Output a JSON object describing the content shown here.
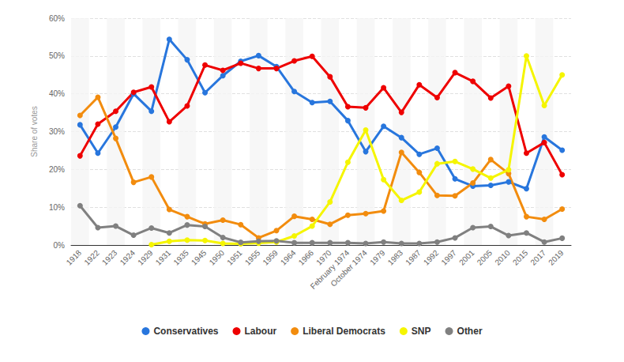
{
  "chart_data": {
    "type": "line",
    "y_label": "Share of votes",
    "categories": [
      "1918",
      "1922",
      "1923",
      "1924",
      "1929",
      "1931",
      "1935",
      "1945",
      "1950",
      "1951",
      "1955",
      "1959",
      "1964",
      "1966",
      "1970",
      "February 1974",
      "October 1974",
      "1979",
      "1983",
      "1987",
      "1992",
      "1997",
      "2001",
      "2005",
      "2010",
      "2015",
      "2017",
      "2019"
    ],
    "series": [
      {
        "name": "Conservatives",
        "color": "#2876dd",
        "values": [
          31.8,
          24.3,
          31.2,
          40.0,
          35.4,
          54.4,
          49.0,
          40.3,
          44.8,
          48.6,
          50.1,
          47.2,
          40.6,
          37.7,
          38.0,
          32.9,
          24.7,
          31.4,
          28.4,
          24.0,
          25.6,
          17.5,
          15.6,
          15.8,
          16.7,
          14.9,
          28.6,
          25.1
        ]
      },
      {
        "name": "Labour",
        "color": "#ee0000",
        "values": [
          23.6,
          32.0,
          35.4,
          40.4,
          41.8,
          32.6,
          36.8,
          47.6,
          46.2,
          48.1,
          46.7,
          46.7,
          48.7,
          49.9,
          44.5,
          36.6,
          36.3,
          41.6,
          35.1,
          42.4,
          39.0,
          45.6,
          43.3,
          38.9,
          42.0,
          24.3,
          27.1,
          18.6
        ]
      },
      {
        "name": "Liberal Democrats",
        "color": "#f28c0e",
        "values": [
          34.3,
          39.1,
          28.2,
          16.6,
          18.0,
          9.4,
          7.5,
          5.6,
          6.6,
          5.4,
          1.9,
          3.8,
          7.6,
          6.8,
          5.5,
          7.9,
          8.3,
          9.0,
          24.5,
          19.2,
          13.1,
          13.0,
          16.4,
          22.6,
          18.9,
          7.5,
          6.8,
          9.5
        ]
      },
      {
        "name": "SNP",
        "color": "#f5f500",
        "values": [
          null,
          null,
          null,
          null,
          0.1,
          1.0,
          1.3,
          1.2,
          0.4,
          0.3,
          0.5,
          0.8,
          2.4,
          5.0,
          11.4,
          21.9,
          30.4,
          17.3,
          11.8,
          14.0,
          21.5,
          22.1,
          20.1,
          17.7,
          19.9,
          50.0,
          36.9,
          45.0
        ]
      },
      {
        "name": "Other",
        "color": "#808080",
        "values": [
          10.4,
          4.6,
          5.0,
          2.6,
          4.5,
          3.2,
          5.3,
          4.9,
          2.0,
          0.7,
          1.0,
          1.1,
          0.6,
          0.6,
          0.6,
          0.6,
          0.4,
          0.8,
          0.4,
          0.4,
          0.8,
          1.9,
          4.6,
          4.9,
          2.5,
          3.2,
          0.8,
          1.8
        ]
      }
    ],
    "ylim": [
      0,
      60
    ],
    "yticks": [
      {
        "value": 0,
        "label": "0%"
      },
      {
        "value": 10,
        "label": "10%"
      },
      {
        "value": 20,
        "label": "20%"
      },
      {
        "value": 30,
        "label": "30%"
      },
      {
        "value": 40,
        "label": "40%"
      },
      {
        "value": 50,
        "label": "50%"
      },
      {
        "value": 60,
        "label": "60%"
      }
    ],
    "grid": true,
    "legend": "bottom",
    "marker": "circle"
  }
}
